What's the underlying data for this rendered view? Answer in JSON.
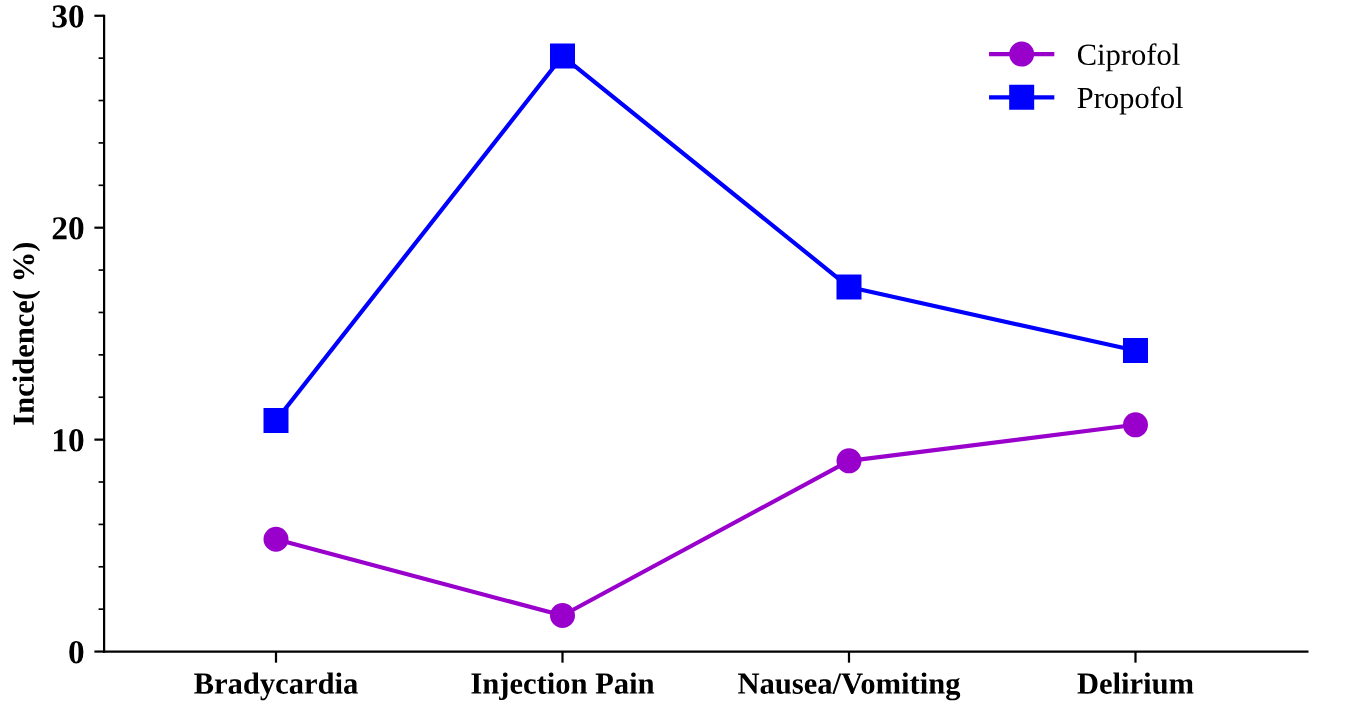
{
  "chart_data": {
    "type": "line",
    "ylabel": "Incidence( %)",
    "categories": [
      "Bradycardia",
      "Injection Pain",
      "Nausea/Vomiting",
      "Delirium"
    ],
    "series": [
      {
        "name": "Ciprofol",
        "color": "#9900cc",
        "marker": "circle",
        "values": [
          5.3,
          1.7,
          9.0,
          10.7
        ]
      },
      {
        "name": "Propofol",
        "color": "#0000ff",
        "marker": "square",
        "values": [
          10.9,
          28.1,
          17.2,
          14.2
        ]
      }
    ],
    "ylim": [
      0,
      30
    ],
    "yticks": [
      0,
      10,
      20,
      30
    ],
    "grid": false,
    "legend": "top right",
    "line_style": "solid"
  }
}
